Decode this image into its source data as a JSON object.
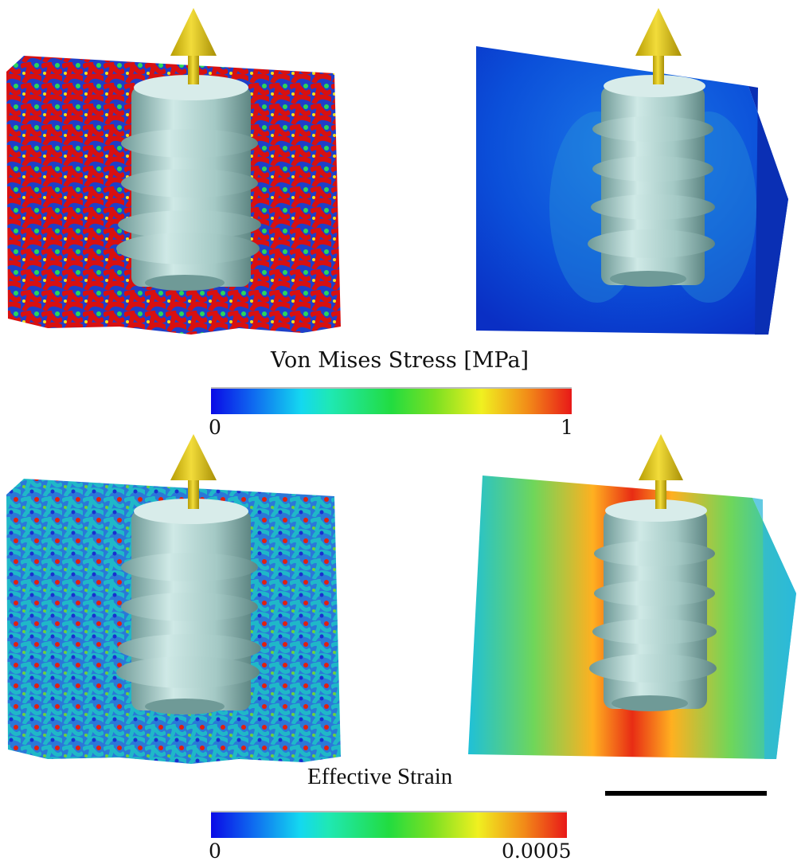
{
  "stress_legend": {
    "title": "Von Mises Stress [MPa]",
    "min_label": "0",
    "max_label": "1",
    "colormap": [
      "#0a0ae6",
      "#14d8f0",
      "#22dc40",
      "#f0f020",
      "#e81818"
    ]
  },
  "strain_legend": {
    "title": "Effective Strain",
    "min_label": "0",
    "max_label": "0.0005",
    "colormap": [
      "#0a0ae6",
      "#14d8f0",
      "#22dc40",
      "#f0f020",
      "#e81818"
    ]
  },
  "colors": {
    "arrow": "#d9c21a",
    "implant": "#a9cfcc",
    "scale_bar": "#000000"
  }
}
